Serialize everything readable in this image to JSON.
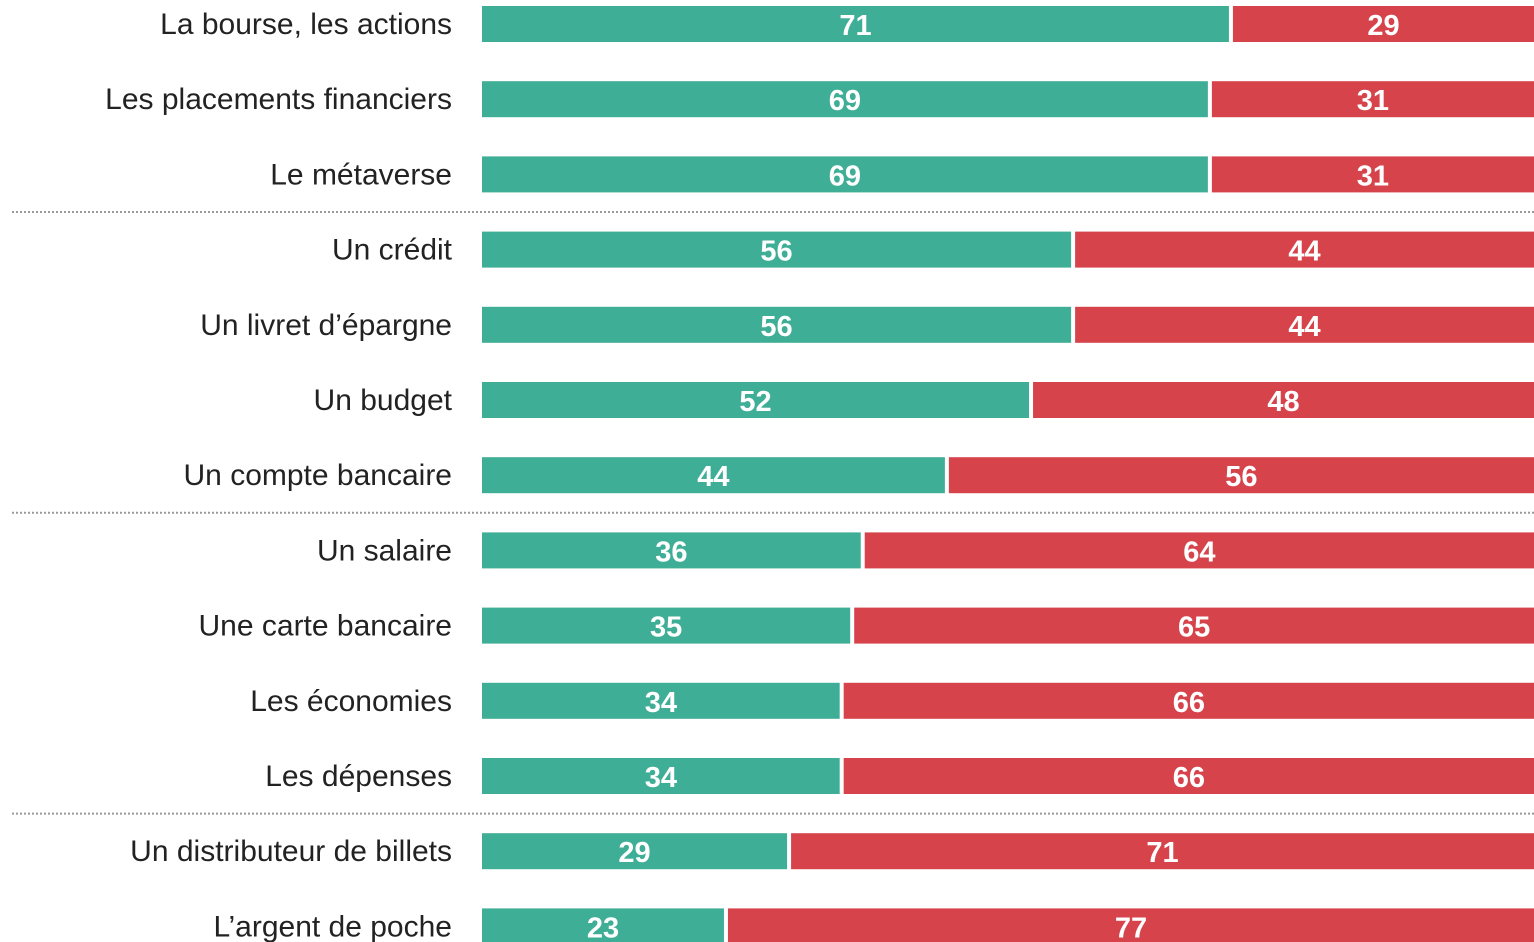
{
  "colors": {
    "first_series": "#3fae96",
    "second_series": "#d6434b"
  },
  "chart_data": {
    "type": "bar",
    "orientation": "horizontal",
    "stacked": true,
    "title": "",
    "xlabel": "",
    "ylabel": "",
    "xlim": [
      0,
      100
    ],
    "grid": false,
    "legend": "none",
    "group_separators_after": [
      2,
      6,
      10
    ],
    "categories": [
      "La bourse, les actions",
      "Les placements financiers",
      "Le métaverse",
      "Un crédit",
      "Un livret d’épargne",
      "Un budget",
      "Un compte bancaire",
      "Un salaire",
      "Une carte bancaire",
      "Les économies",
      "Les dépenses",
      "Un distributeur de billets",
      "L’argent de poche"
    ],
    "series": [
      {
        "values": [
          71,
          69,
          69,
          56,
          56,
          52,
          44,
          36,
          35,
          34,
          34,
          29,
          23
        ]
      },
      {
        "values": [
          29,
          31,
          31,
          44,
          44,
          48,
          56,
          64,
          65,
          66,
          66,
          71,
          77
        ]
      }
    ]
  }
}
